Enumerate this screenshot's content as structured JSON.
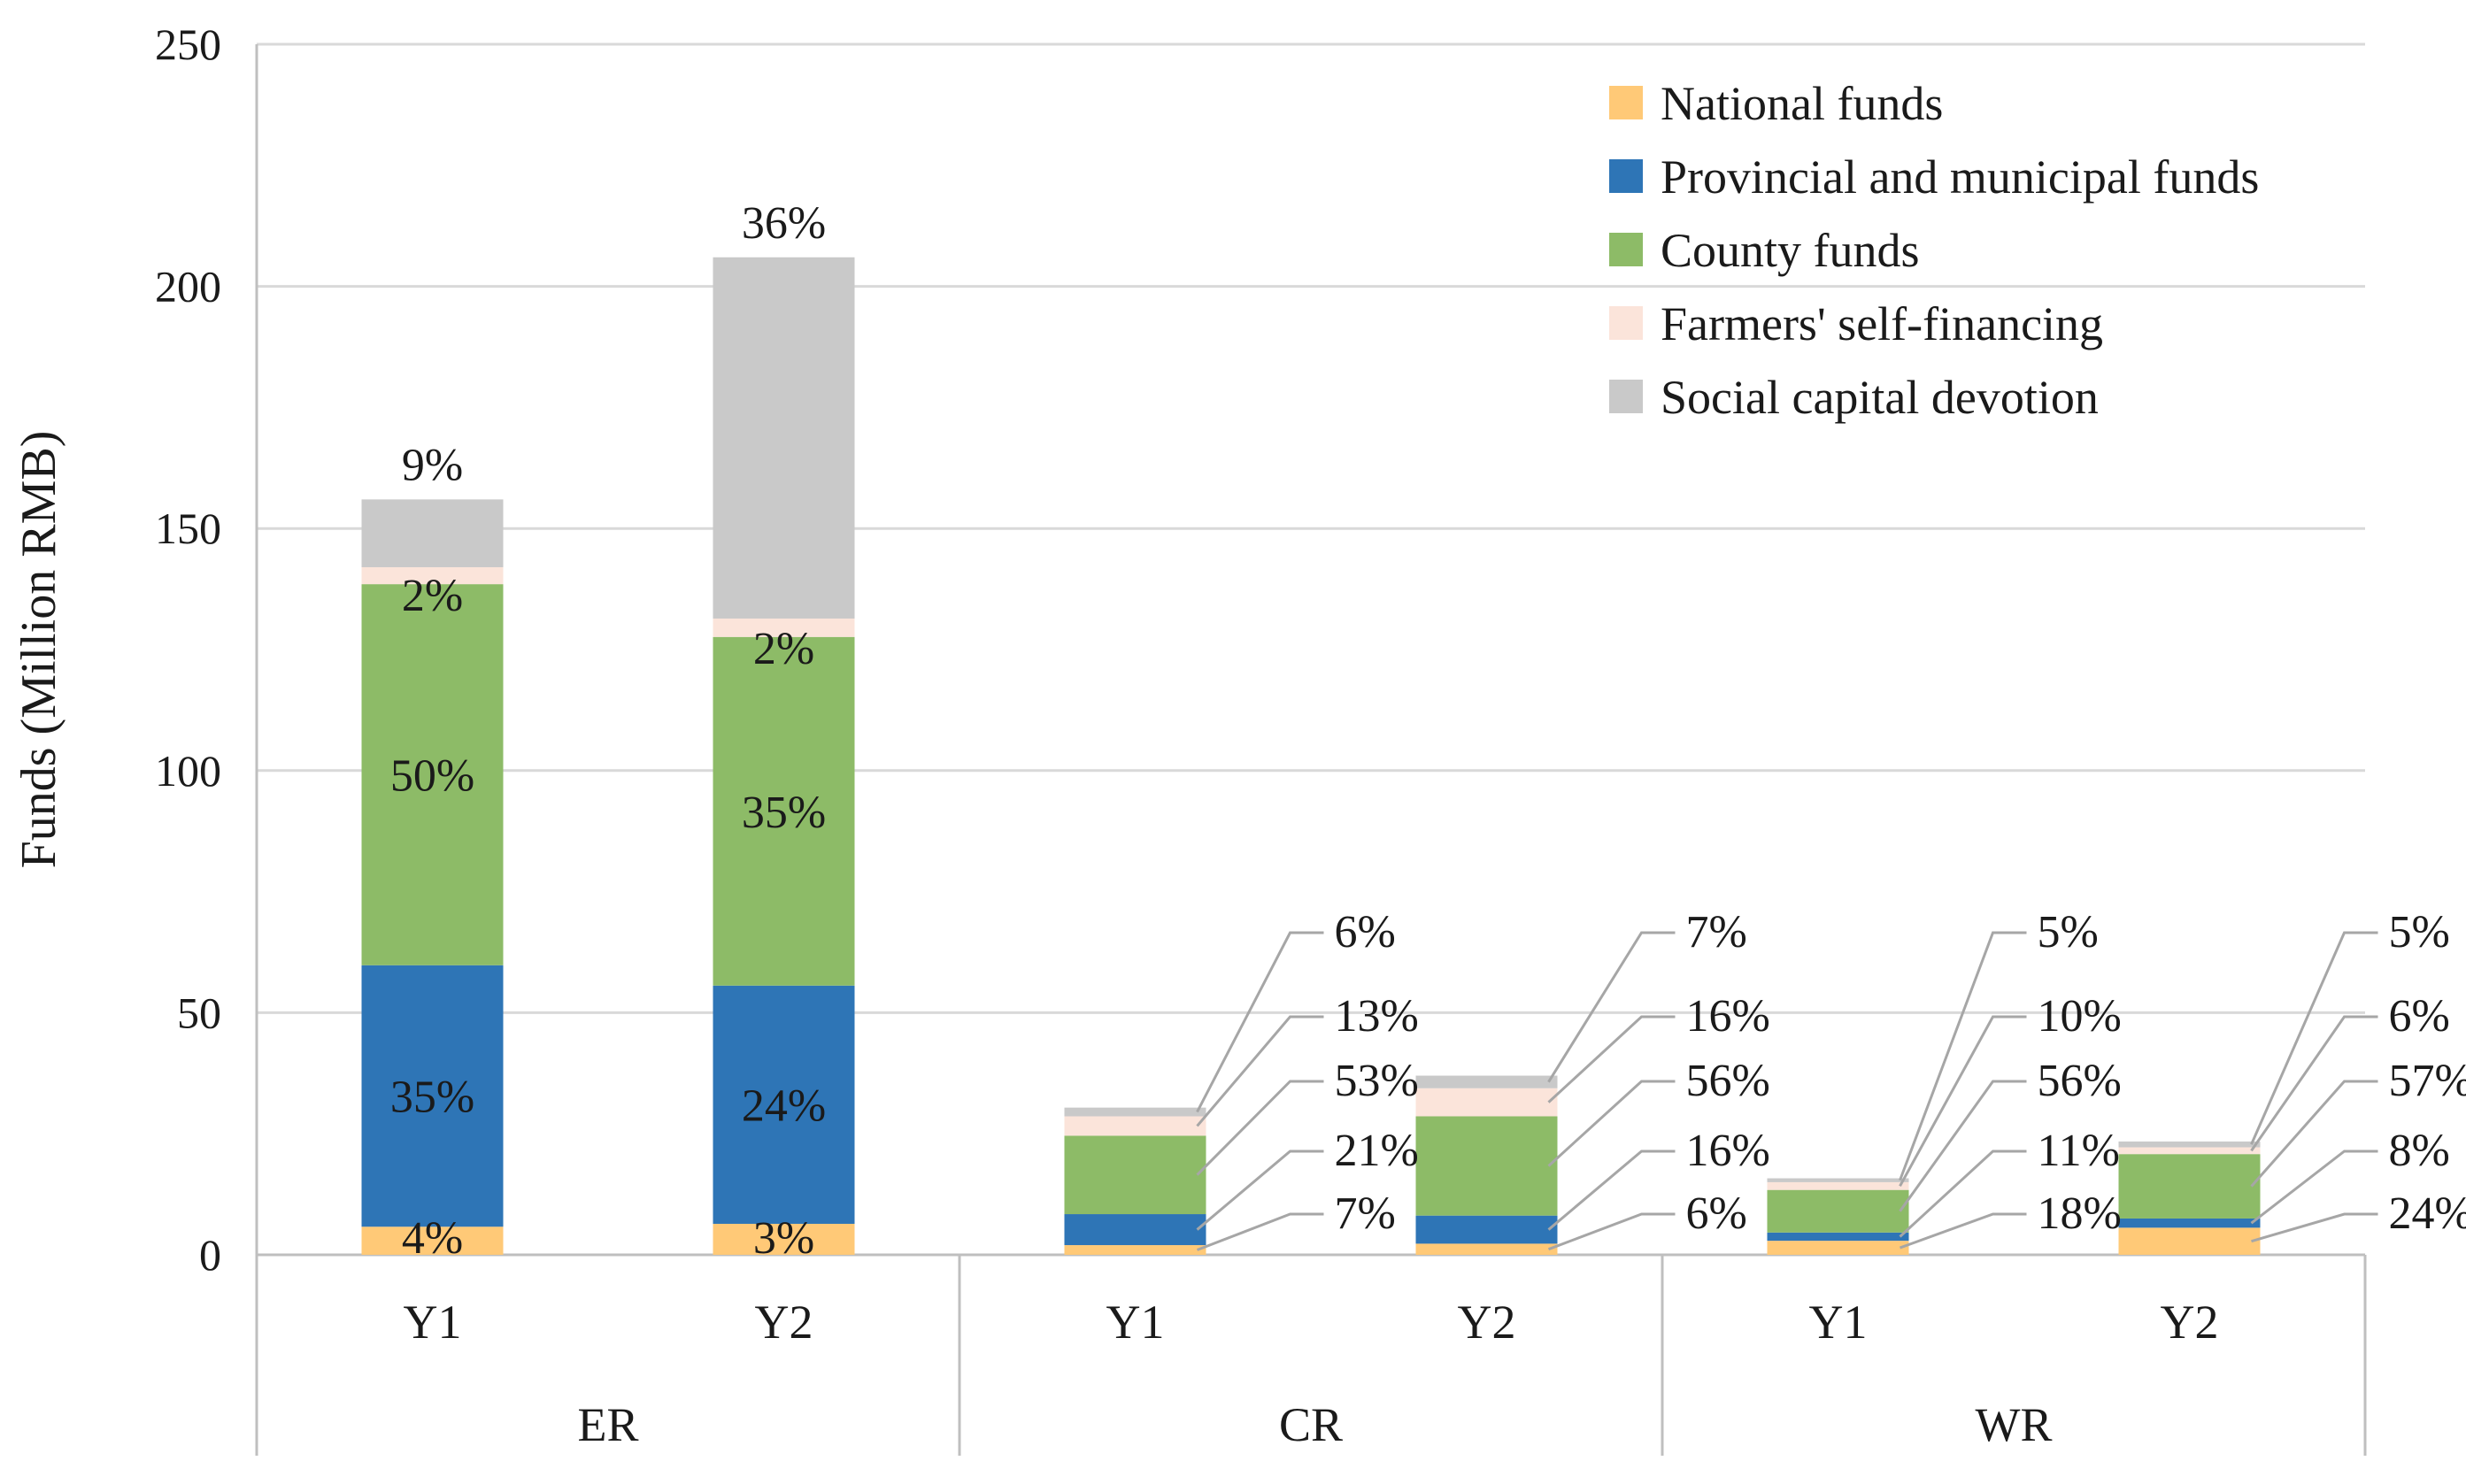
{
  "chart_data": {
    "type": "bar",
    "stacked": true,
    "title": "",
    "xlabel": "",
    "ylabel": "Funds (Million RMB)",
    "ylim": [
      0,
      250
    ],
    "yticks": [
      "0",
      "50",
      "100",
      "150",
      "200",
      "250"
    ],
    "grid": true,
    "legend_position": "top-right",
    "groups": [
      "ER",
      "CR",
      "WR"
    ],
    "categories": [
      {
        "group": "ER",
        "label": "Y1"
      },
      {
        "group": "ER",
        "label": "Y2"
      },
      {
        "group": "CR",
        "label": "Y1"
      },
      {
        "group": "CR",
        "label": "Y2"
      },
      {
        "group": "WR",
        "label": "Y1"
      },
      {
        "group": "WR",
        "label": "Y2"
      }
    ],
    "series": [
      {
        "name": "National funds",
        "color": "#FFC977",
        "values": [
          5.8,
          6.4,
          2.0,
          2.3,
          2.9,
          5.6
        ],
        "labels": [
          "4%",
          "3%",
          "7%",
          "6%",
          "18%",
          "24%"
        ]
      },
      {
        "name": "Provincial and municipal funds",
        "color": "#2E75B6",
        "values": [
          54.0,
          49.2,
          6.4,
          5.8,
          1.7,
          1.9
        ],
        "labels": [
          "35%",
          "24%",
          "21%",
          "16%",
          "11%",
          "8%"
        ]
      },
      {
        "name": "County funds",
        "color": "#8DBB67",
        "values": [
          78.7,
          72.0,
          16.2,
          20.5,
          8.8,
          13.3
        ],
        "labels": [
          "50%",
          "35%",
          "53%",
          "56%",
          "56%",
          "57%"
        ]
      },
      {
        "name": "Farmers' self-financing",
        "color": "#FBE4DA",
        "values": [
          3.5,
          3.8,
          4.0,
          5.8,
          1.6,
          1.4
        ],
        "labels": [
          "2%",
          "2%",
          "13%",
          "16%",
          "10%",
          "6%"
        ]
      },
      {
        "name": "Social capital devotion",
        "color": "#C9C9C9",
        "values": [
          14.0,
          74.6,
          1.8,
          2.6,
          0.8,
          1.2
        ],
        "labels": [
          "9%",
          "36%",
          "6%",
          "7%",
          "5%",
          "5%"
        ]
      }
    ]
  }
}
